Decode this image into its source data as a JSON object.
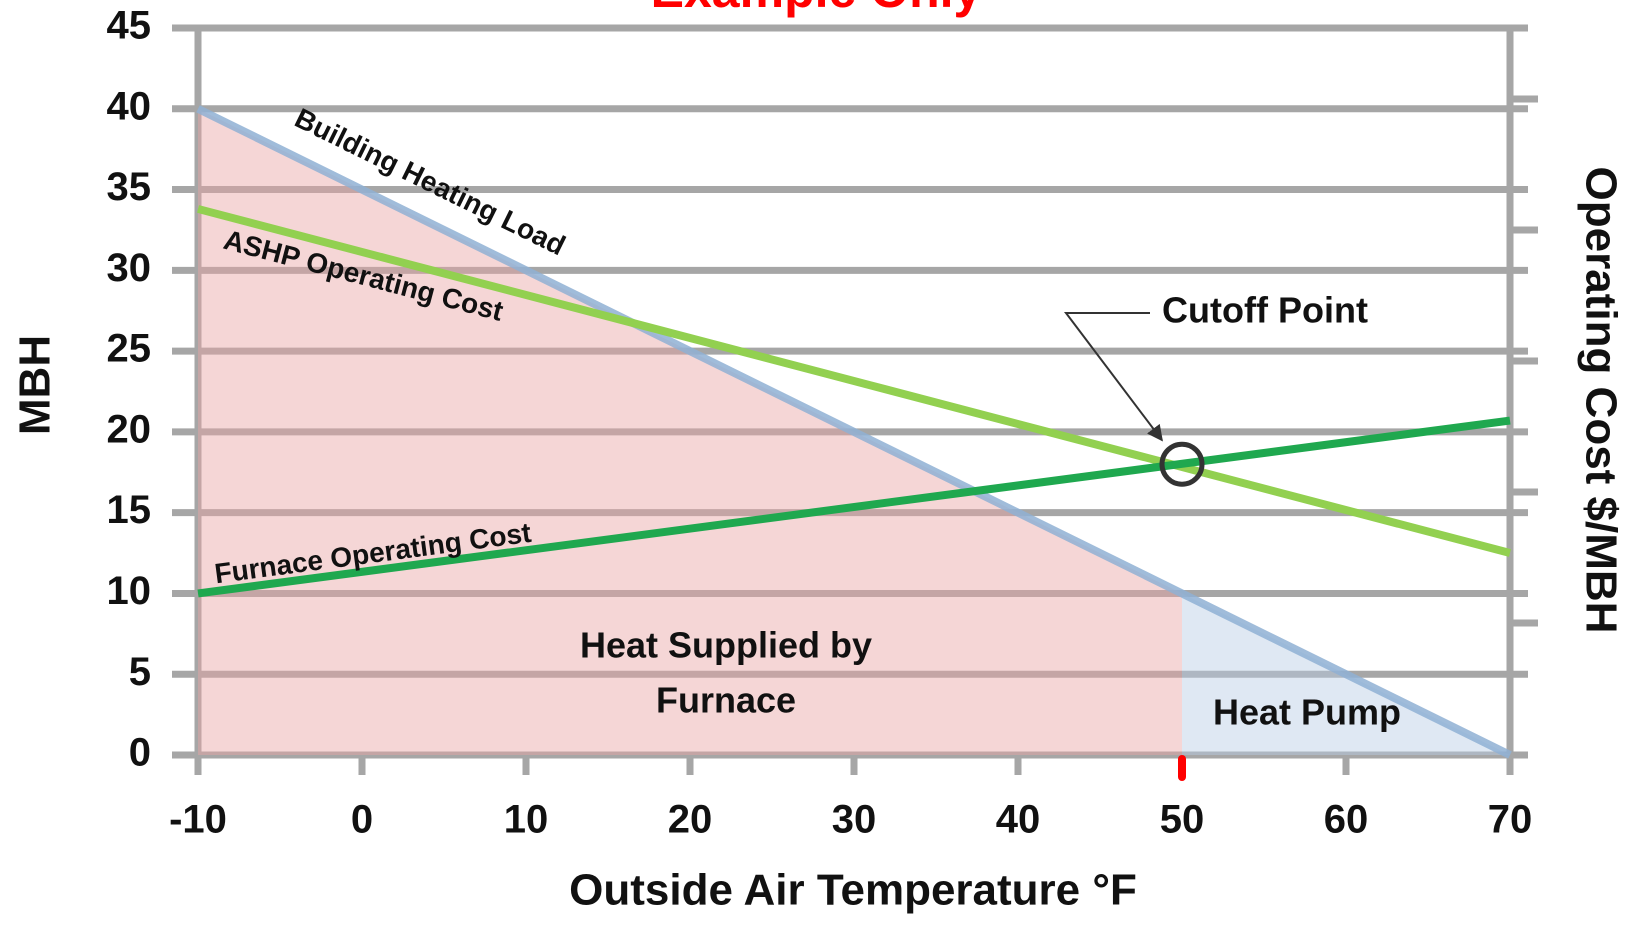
{
  "chart_data": {
    "type": "line",
    "title": "Example Only",
    "x_label": "Outside Air Temperature °F",
    "y_label": "MBH",
    "y2_label": "Operating Cost $/MBH",
    "x": [
      -10,
      70
    ],
    "xlim": [
      -10,
      70
    ],
    "xticks": [
      -10,
      0,
      10,
      20,
      30,
      40,
      50,
      60,
      70
    ],
    "ylim": [
      0,
      45
    ],
    "yticks": [
      0,
      5,
      10,
      15,
      20,
      25,
      30,
      35,
      40,
      45
    ],
    "grid": true,
    "series": [
      {
        "name": "Building Heating Load",
        "color": "#8fb0d4",
        "values": [
          40,
          0
        ]
      },
      {
        "name": "ASHP Operating Cost",
        "color": "#92d050",
        "values": [
          33.8,
          12.5
        ]
      },
      {
        "name": "Furnace Operating Cost",
        "color": "#1fa84f",
        "values": [
          10,
          20.7
        ]
      }
    ],
    "regions": [
      {
        "label": [
          "Heat Supplied by",
          "Furnace"
        ],
        "x": [
          -10,
          50
        ],
        "color": "#e8a4a4"
      },
      {
        "label": "Heat Pump",
        "x": [
          50,
          70
        ],
        "color": "#b8cce4"
      }
    ],
    "cutoff": {
      "label": "Cutoff Point",
      "x": 50,
      "y": 18
    }
  }
}
